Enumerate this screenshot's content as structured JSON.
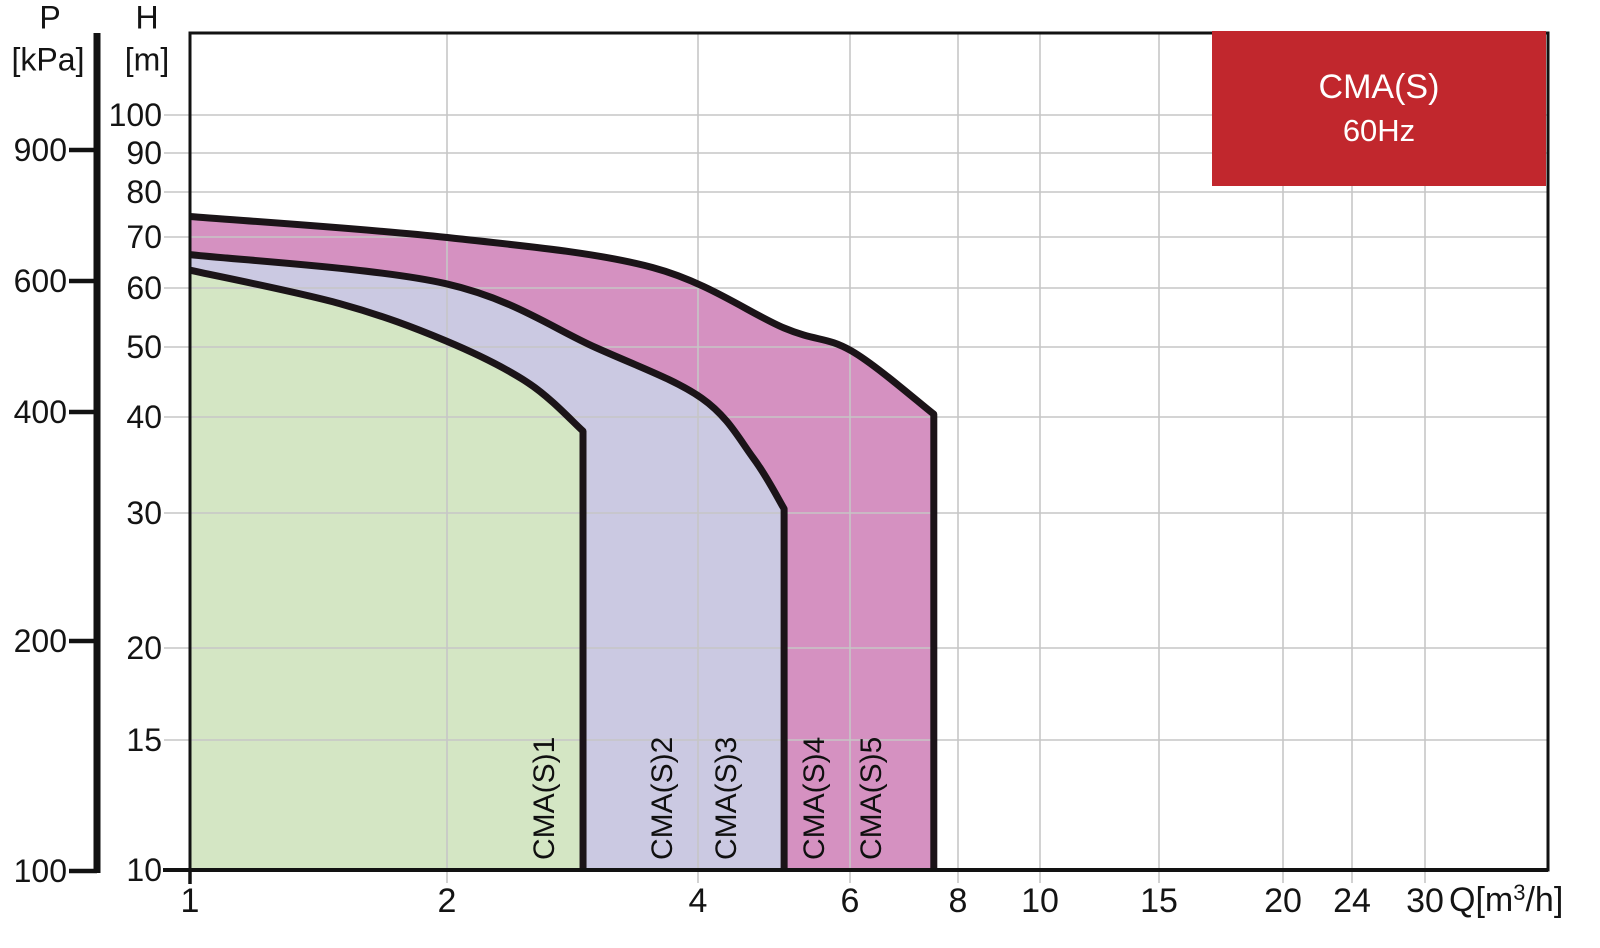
{
  "page": {
    "background": "#ffffff"
  },
  "badge": {
    "title": "CMA(S)",
    "subtitle": "60Hz",
    "bg_color": "#c1272d",
    "text_color": "#ffffff"
  },
  "axis_labels": {
    "pressure_name": "P",
    "pressure_unit": "[kPa]",
    "head_name": "H",
    "head_unit": "[m]",
    "flow_pre": "Q[m",
    "flow_sup": "3",
    "flow_post": "/h]"
  },
  "chart_data": {
    "type": "area",
    "title": "CMA(S) 60Hz pump family hydraulic coverage",
    "x_axis": {
      "label": "Q [m³/h]",
      "scale": "log",
      "range_shown": [
        1,
        40
      ],
      "tick_labels": [
        "1",
        "2",
        "4",
        "6",
        "8",
        "10",
        "15",
        "20",
        "24",
        "30"
      ]
    },
    "y_axis": {
      "label": "H [m]",
      "scale": "log",
      "range_shown": [
        10,
        130
      ],
      "tick_labels": [
        "100",
        "90",
        "80",
        "70",
        "60",
        "50",
        "40",
        "30",
        "20",
        "15",
        "10"
      ]
    },
    "y2_axis": {
      "label": "P [kPa]",
      "scale": "log",
      "tick_labels": [
        "900",
        "600",
        "400",
        "200",
        "100"
      ]
    },
    "grid": true,
    "legend_position": "none",
    "series": [
      {
        "name": "CMA(S)1",
        "fill_color": "#d4e6c4",
        "envelope_qh": [
          [
            1,
            62
          ],
          [
            1.5,
            56
          ],
          [
            2,
            50
          ],
          [
            2.5,
            44
          ],
          [
            2.9,
            38
          ]
        ],
        "q_max": 2.9,
        "head_at_q1_m": 62,
        "head_at_qmax_m": 38
      },
      {
        "name": "CMA(S)2-3",
        "fill_color": "#cbc9e2",
        "envelope_qh": [
          [
            1,
            65
          ],
          [
            2,
            59.5
          ],
          [
            3,
            49
          ],
          [
            4,
            42
          ],
          [
            4.6,
            35
          ],
          [
            5,
            30
          ]
        ],
        "q_max": 5,
        "head_at_q1_m": 65,
        "head_at_qmax_m": 30
      },
      {
        "name": "CMA(S)4-5",
        "fill_color": "#d591c1",
        "envelope_qh": [
          [
            1,
            73
          ],
          [
            2,
            68.5
          ],
          [
            3.5,
            62.5
          ],
          [
            5,
            52
          ],
          [
            6,
            48.5
          ],
          [
            7.5,
            40
          ]
        ],
        "q_max": 7.5,
        "head_at_q1_m": 73,
        "head_at_qmax_m": 40
      }
    ],
    "region_labels": [
      "CMA(S)1",
      "CMA(S)2",
      "CMA(S)3",
      "CMA(S)4",
      "CMA(S)5"
    ]
  }
}
